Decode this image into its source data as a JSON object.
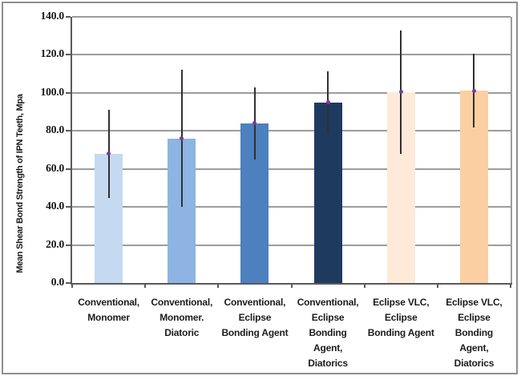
{
  "chart_data": {
    "type": "bar",
    "title": "",
    "xlabel": "",
    "ylabel": "Mean Shear Bond Strength of IPN Teeth, Mpa",
    "ylim": [
      0,
      140
    ],
    "ytick_interval": 20,
    "ytick_labels": [
      "0.0",
      "20.0",
      "40.0",
      "60.0",
      "80.0",
      "100.0",
      "120.0",
      "140.0"
    ],
    "grid": true,
    "legend": false,
    "categories": [
      "Conventional, Monomer",
      "Conventional, Monomer. Diatoric",
      "Conventional, Eclipse Bonding Agent",
      "Conventional, Eclipse Bonding Agent, Diatorics",
      "Eclipse VLC, Eclipse Bonding Agent",
      "Eclipse VLC, Eclipse Bonding Agent, Diatorics"
    ],
    "category_label_lines": [
      "Conventional,\nMonomer",
      "Conventional,\nMonomer.\nDiatoric",
      "Conventional,\nEclipse\nBonding Agent",
      "Conventional,\nEclipse\nBonding\nAgent,\nDiatorics",
      "Eclipse VLC,\nEclipse\nBonding Agent",
      "Eclipse VLC,\nEclipse\nBonding\nAgent,\nDiatorics"
    ],
    "values": [
      68,
      76,
      84,
      95,
      100.5,
      101
    ],
    "error_bars": {
      "low": [
        44.5,
        40,
        65,
        79,
        68,
        82
      ],
      "high": [
        91,
        112,
        103,
        111.5,
        133,
        120.5
      ]
    },
    "bar_colors": [
      "#c5d9f1",
      "#8db4e2",
      "#4c80be",
      "#1e3a5f",
      "#fdead9",
      "#fbcfa2"
    ],
    "colors": {
      "gridline": "#9c9c9c",
      "axis": "#5a5a5a",
      "error_bar": "#303030",
      "mean_marker": "#7a3aa2",
      "frame_border": "#8f8f8f",
      "background": "#ffffff"
    }
  }
}
